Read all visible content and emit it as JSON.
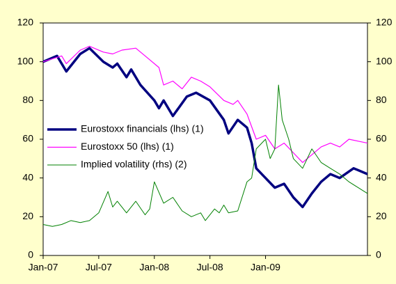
{
  "chart_data": {
    "type": "line",
    "xlim": [
      0,
      35
    ],
    "xticks": [
      {
        "value": 0,
        "label": "Jan-07"
      },
      {
        "value": 6,
        "label": "Jul-07"
      },
      {
        "value": 12,
        "label": "Jan-08"
      },
      {
        "value": 18,
        "label": "Jul-08"
      },
      {
        "value": 24,
        "label": "Jan-09"
      }
    ],
    "ylim": [
      0,
      120
    ],
    "yticks": [
      0,
      20,
      40,
      60,
      80,
      100,
      120
    ],
    "y2lim": [
      0,
      120
    ],
    "y2ticks": [
      0,
      20,
      40,
      60,
      80,
      100,
      120
    ],
    "legend": "left",
    "series": [
      {
        "name": "Eurostoxx financials (lhs) (1)",
        "color": "#000080",
        "x": [
          0,
          1.5,
          2.5,
          4,
          5,
          6.5,
          7.5,
          8,
          9,
          9.5,
          10.5,
          12,
          12.5,
          13,
          14,
          15.5,
          16.5,
          18,
          19.5,
          20,
          21,
          22,
          22.5,
          23,
          24,
          25,
          26,
          27,
          28,
          29,
          30,
          31,
          32,
          33.5,
          34,
          35
        ],
        "values": [
          100,
          103,
          95,
          104,
          107,
          100,
          97,
          99,
          92,
          96,
          88,
          80,
          76,
          80,
          72,
          82,
          84,
          80,
          70,
          63,
          70,
          66,
          58,
          45,
          40,
          35,
          37,
          30,
          25,
          32,
          38,
          42,
          40,
          45,
          44,
          42
        ]
      },
      {
        "name": "Eurostoxx 50 (lhs) (1)",
        "color": "#ff00ff",
        "x": [
          0,
          2,
          2.5,
          4,
          5,
          6.5,
          7.5,
          8.5,
          10,
          11,
          12.5,
          13,
          14,
          15,
          16,
          17,
          18,
          19.5,
          20.5,
          21,
          22,
          23,
          24,
          25,
          26,
          27,
          28,
          29,
          30,
          31,
          32,
          33,
          34,
          35
        ],
        "values": [
          100,
          103,
          99,
          106,
          108,
          105,
          104,
          106,
          107,
          103,
          97,
          88,
          90,
          86,
          92,
          90,
          87,
          80,
          78,
          80,
          73,
          60,
          62,
          55,
          58,
          53,
          48,
          52,
          56,
          58,
          56,
          60,
          59,
          58
        ]
      },
      {
        "name": "Implied volatility (rhs) (2)",
        "color": "#008000",
        "axis": "y2",
        "x": [
          0,
          1,
          2,
          3,
          4,
          5,
          6,
          7,
          7.5,
          8,
          9,
          10,
          11,
          11.5,
          12,
          13,
          14,
          15,
          16,
          17,
          17.5,
          18.5,
          19,
          19.5,
          20,
          21,
          22,
          22.5,
          23,
          24,
          24.5,
          25,
          25.4,
          25.8,
          26.5,
          27,
          28,
          29,
          30,
          31,
          32,
          33,
          34,
          35
        ],
        "values": [
          16,
          15,
          16,
          18,
          17,
          18,
          22,
          33,
          25,
          28,
          22,
          28,
          21,
          24,
          38,
          27,
          30,
          23,
          20,
          22,
          18,
          24,
          22,
          26,
          22,
          23,
          38,
          40,
          55,
          60,
          50,
          55,
          88,
          70,
          60,
          50,
          45,
          55,
          48,
          45,
          42,
          38,
          35,
          32
        ]
      }
    ]
  }
}
